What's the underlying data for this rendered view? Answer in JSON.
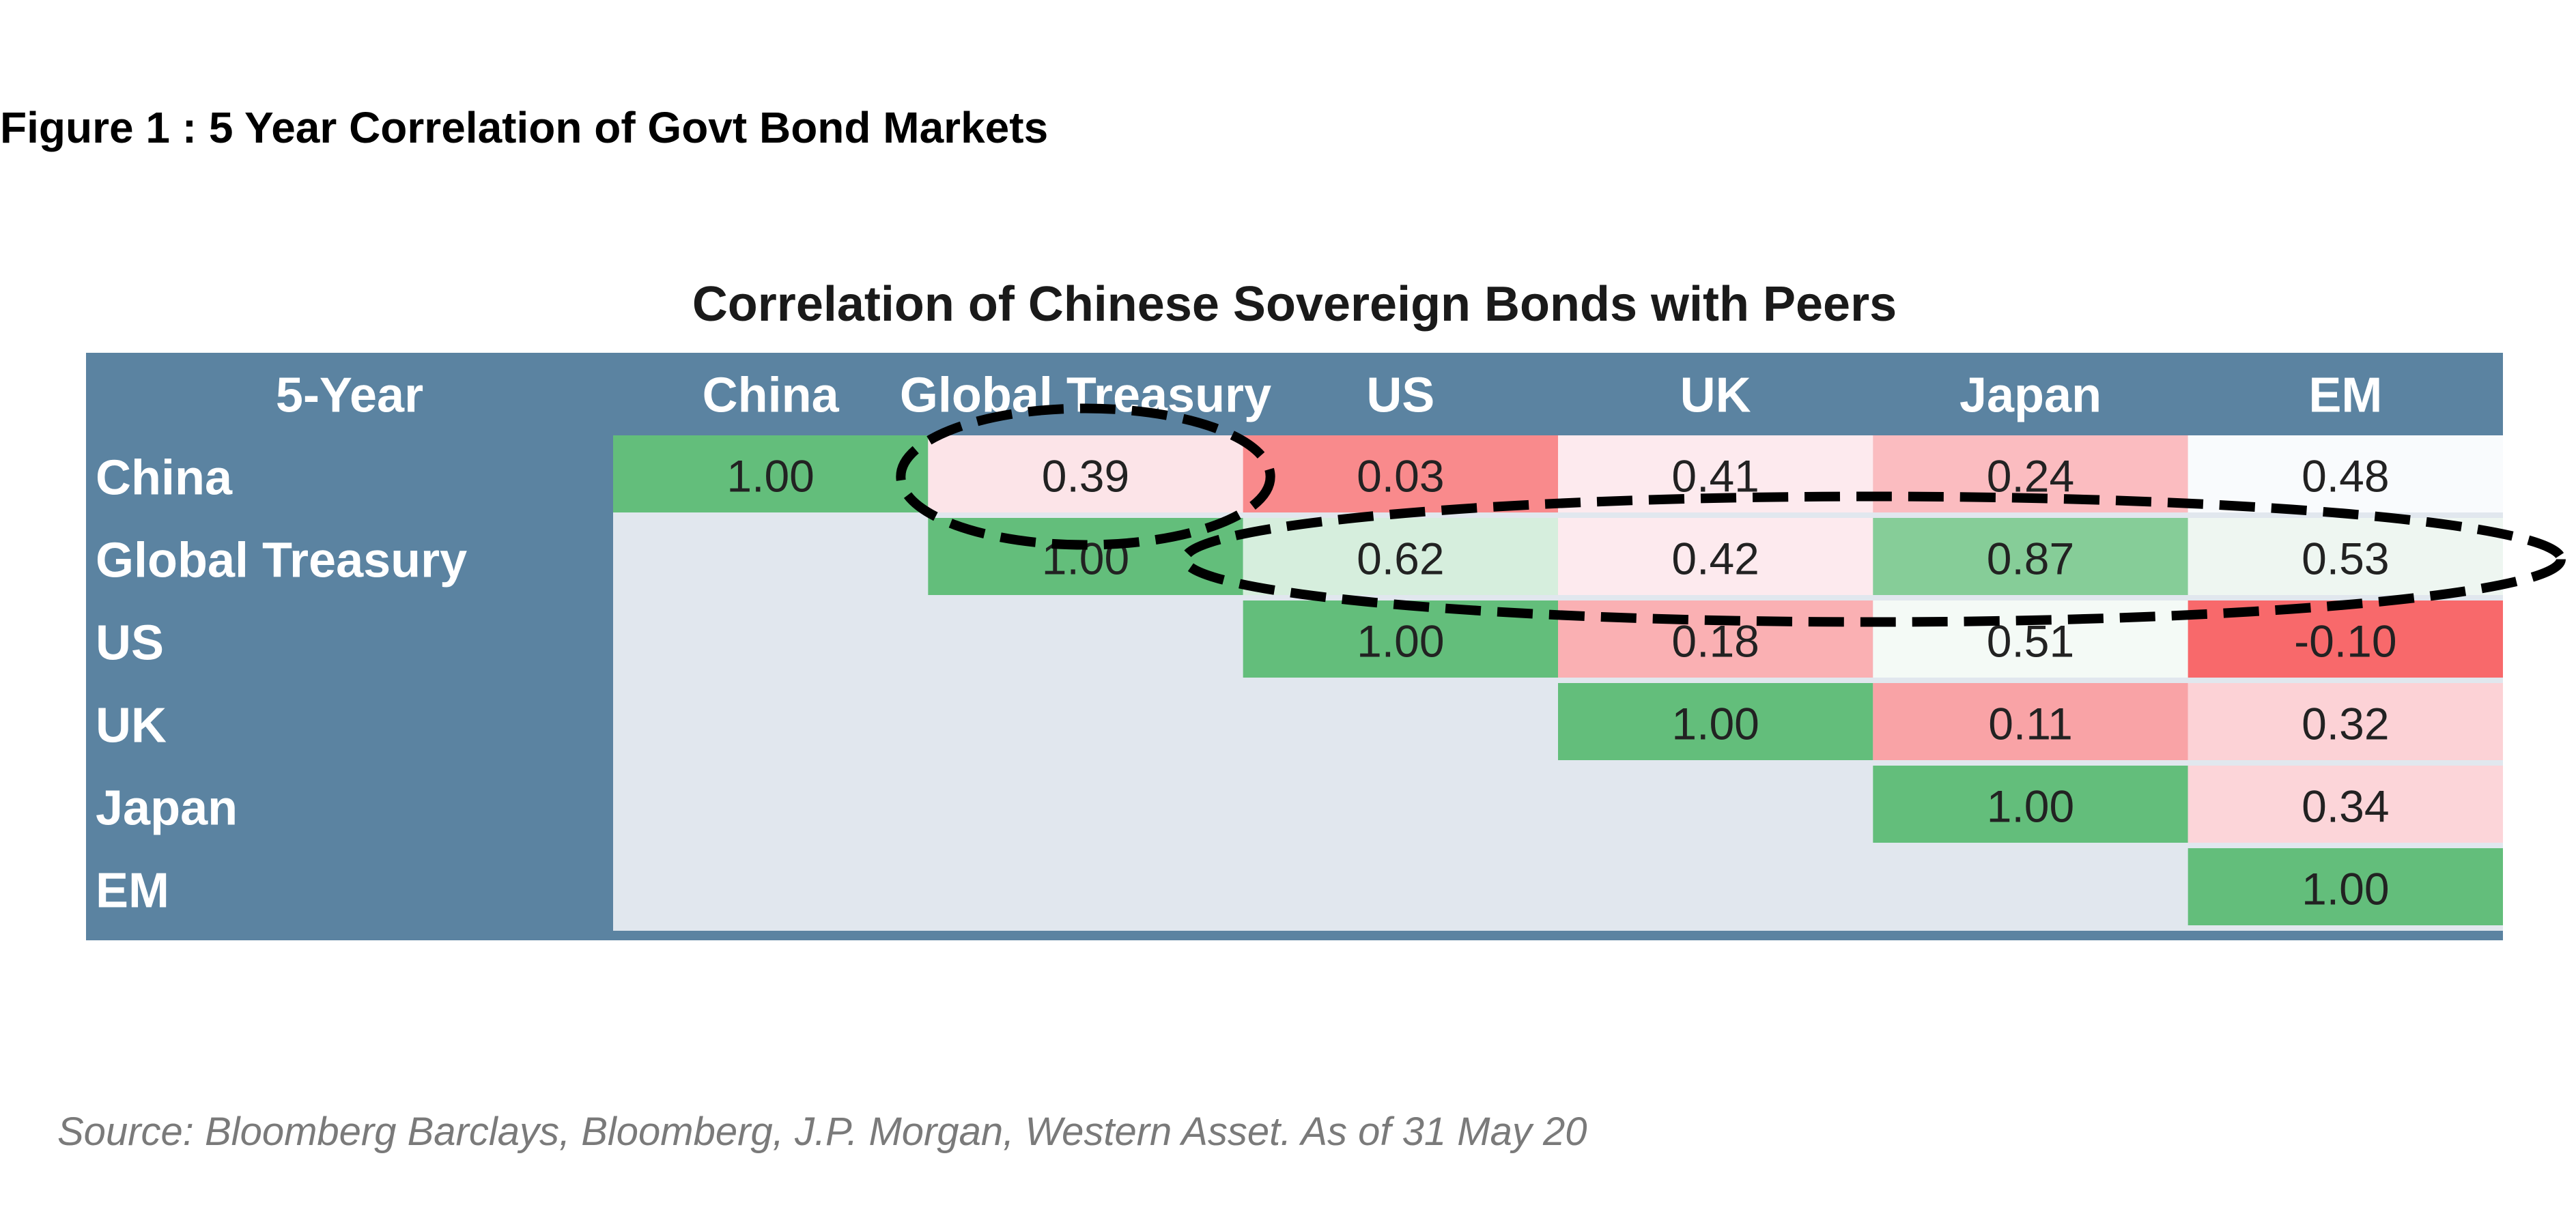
{
  "figure_title": "Figure 1 : 5 Year Correlation of Govt Bond Markets",
  "source": "Source: Bloomberg Barclays, Bloomberg, J.P. Morgan, Western Asset. As of 31 May 20",
  "colors": {
    "header_bg": "#5b83a1",
    "empty_bg": "#e1e7ee",
    "diagonal_green": "#63be7b"
  },
  "chart_data": {
    "type": "table",
    "title": "Correlation of Chinese Sovereign Bonds with Peers",
    "corner_label": "5-Year",
    "columns": [
      "China",
      "Global Treasury",
      "US",
      "UK",
      "Japan",
      "EM"
    ],
    "rows": [
      "China",
      "Global Treasury",
      "US",
      "UK",
      "Japan",
      "EM"
    ],
    "values": [
      [
        "1.00",
        "0.39",
        "0.03",
        "0.41",
        "0.24",
        "0.48"
      ],
      [
        "",
        "1.00",
        "0.62",
        "0.42",
        "0.87",
        "0.53"
      ],
      [
        "",
        "",
        "1.00",
        "0.18",
        "0.51",
        "-0.10"
      ],
      [
        "",
        "",
        "",
        "1.00",
        "0.11",
        "0.32"
      ],
      [
        "",
        "",
        "",
        "",
        "1.00",
        "0.34"
      ],
      [
        "",
        "",
        "",
        "",
        "",
        "1.00"
      ]
    ],
    "cell_colors": [
      [
        "#63be7b",
        "#fce4e8",
        "#f98a8c",
        "#fdeaee",
        "#fbbcc0",
        "#f9fbfd"
      ],
      [
        "",
        "#63be7b",
        "#d6eedd",
        "#fdeaee",
        "#86cd98",
        "#eef6f1"
      ],
      [
        "",
        "",
        "#63be7b",
        "#fab0b3",
        "#f4faf6",
        "#f8696b"
      ],
      [
        "",
        "",
        "",
        "#63be7b",
        "#f9a3a6",
        "#fcd2d6"
      ],
      [
        "",
        "",
        "",
        "",
        "#63be7b",
        "#fcd5d9"
      ],
      [
        "",
        "",
        "",
        "",
        "",
        "#63be7b"
      ]
    ],
    "highlights": [
      {
        "row": "China",
        "columns": [
          "Global Treasury"
        ]
      },
      {
        "row": "Global Treasury",
        "columns": [
          "US",
          "UK",
          "Japan",
          "EM"
        ]
      }
    ]
  }
}
